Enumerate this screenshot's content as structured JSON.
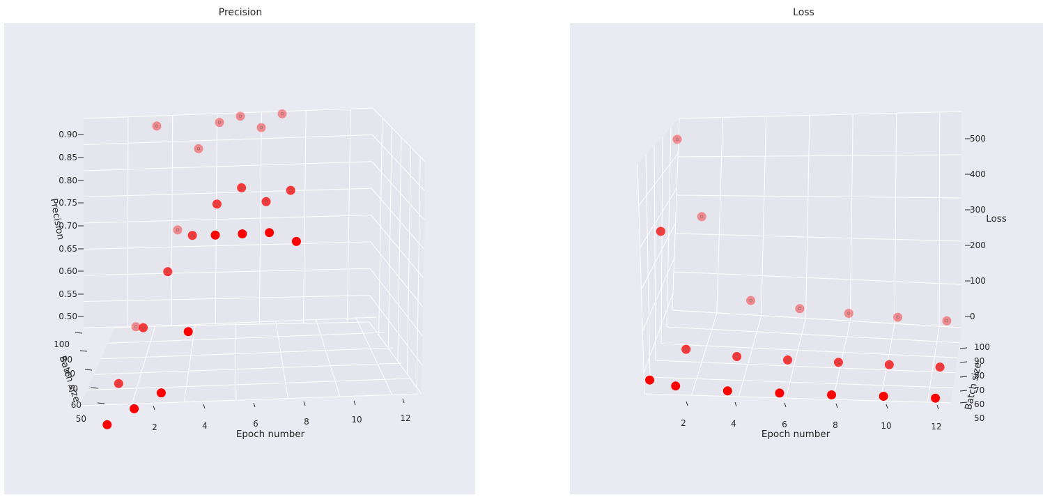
{
  "colors": {
    "point": "#ff0000",
    "pane": "#eaeaf2",
    "pane_side": "#e5e5ed",
    "grid": "#ffffff",
    "text": "#262626"
  },
  "chart_data": [
    {
      "type": "scatter",
      "title": "Precision",
      "xlabel": "Epoch number",
      "ylabel": "Batch size",
      "zlabel": "Precision",
      "x_ticks": [
        "2",
        "4",
        "6",
        "8",
        "10",
        "12"
      ],
      "y_ticks": [
        "50",
        "60",
        "70",
        "80",
        "90",
        "100"
      ],
      "z_ticks": [
        "0.50",
        "0.55",
        "0.60",
        "0.65",
        "0.70",
        "0.75",
        "0.80",
        "0.85",
        "0.90"
      ],
      "xlim": [
        0,
        12.5
      ],
      "ylim": [
        50,
        100
      ],
      "zlim": [
        0.49,
        0.91
      ],
      "grid": true,
      "points": [
        {
          "x": 1,
          "y": 50,
          "z": 0.45
        },
        {
          "x": 1,
          "y": 70,
          "z": 0.47
        },
        {
          "x": 1,
          "y": 100,
          "z": 0.49
        },
        {
          "x": 2,
          "y": 50,
          "z": 0.48
        },
        {
          "x": 2,
          "y": 70,
          "z": 0.58
        },
        {
          "x": 2,
          "y": 100,
          "z": 0.89
        },
        {
          "x": 3,
          "y": 50,
          "z": 0.51
        },
        {
          "x": 3,
          "y": 70,
          "z": 0.69
        },
        {
          "x": 3,
          "y": 100,
          "z": 0.68
        },
        {
          "x": 4,
          "y": 50,
          "z": 0.63
        },
        {
          "x": 4,
          "y": 70,
          "z": 0.76
        },
        {
          "x": 4,
          "y": 100,
          "z": 0.84
        },
        {
          "x": 5,
          "y": 50,
          "z": 0.82
        },
        {
          "x": 5,
          "y": 70,
          "z": 0.82
        },
        {
          "x": 5,
          "y": 100,
          "z": 0.89
        },
        {
          "x": 6,
          "y": 50,
          "z": 0.82
        },
        {
          "x": 6,
          "y": 70,
          "z": 0.85
        },
        {
          "x": 6,
          "y": 100,
          "z": 0.9
        },
        {
          "x": 7,
          "y": 50,
          "z": 0.82
        },
        {
          "x": 7,
          "y": 70,
          "z": 0.82
        },
        {
          "x": 7,
          "y": 100,
          "z": 0.875
        },
        {
          "x": 8,
          "y": 50,
          "z": 0.8
        },
        {
          "x": 8,
          "y": 70,
          "z": 0.84
        },
        {
          "x": 8,
          "y": 100,
          "z": 0.9
        }
      ]
    },
    {
      "type": "scatter",
      "title": "Loss",
      "xlabel": "Epoch number",
      "ylabel": "Batch size",
      "zlabel": "Loss",
      "x_ticks": [
        "2",
        "4",
        "6",
        "8",
        "10",
        "12"
      ],
      "y_ticks": [
        "50",
        "60",
        "70",
        "80",
        "90",
        "100"
      ],
      "z_ticks": [
        "0",
        "100",
        "200",
        "300",
        "400",
        "500"
      ],
      "xlim": [
        0.8,
        12.6
      ],
      "ylim": [
        50,
        100
      ],
      "zlim": [
        -10,
        540
      ],
      "grid": true,
      "points": [
        {
          "x": 1,
          "y": 50,
          "z": 30
        },
        {
          "x": 1,
          "y": 70,
          "z": 360
        },
        {
          "x": 1,
          "y": 100,
          "z": 480
        },
        {
          "x": 2,
          "y": 50,
          "z": 15
        },
        {
          "x": 2,
          "y": 70,
          "z": 25
        },
        {
          "x": 2,
          "y": 100,
          "z": 260
        },
        {
          "x": 4,
          "y": 50,
          "z": 5
        },
        {
          "x": 4,
          "y": 70,
          "z": 10
        },
        {
          "x": 4,
          "y": 100,
          "z": 30
        },
        {
          "x": 6,
          "y": 50,
          "z": 3
        },
        {
          "x": 6,
          "y": 70,
          "z": 6
        },
        {
          "x": 6,
          "y": 100,
          "z": 15
        },
        {
          "x": 8,
          "y": 50,
          "z": 2
        },
        {
          "x": 8,
          "y": 70,
          "z": 5
        },
        {
          "x": 8,
          "y": 100,
          "z": 10
        },
        {
          "x": 10,
          "y": 50,
          "z": 2
        },
        {
          "x": 10,
          "y": 70,
          "z": 4
        },
        {
          "x": 10,
          "y": 100,
          "z": 7
        },
        {
          "x": 12,
          "y": 50,
          "z": 1
        },
        {
          "x": 12,
          "y": 70,
          "z": 3
        },
        {
          "x": 12,
          "y": 100,
          "z": 5
        }
      ]
    }
  ]
}
